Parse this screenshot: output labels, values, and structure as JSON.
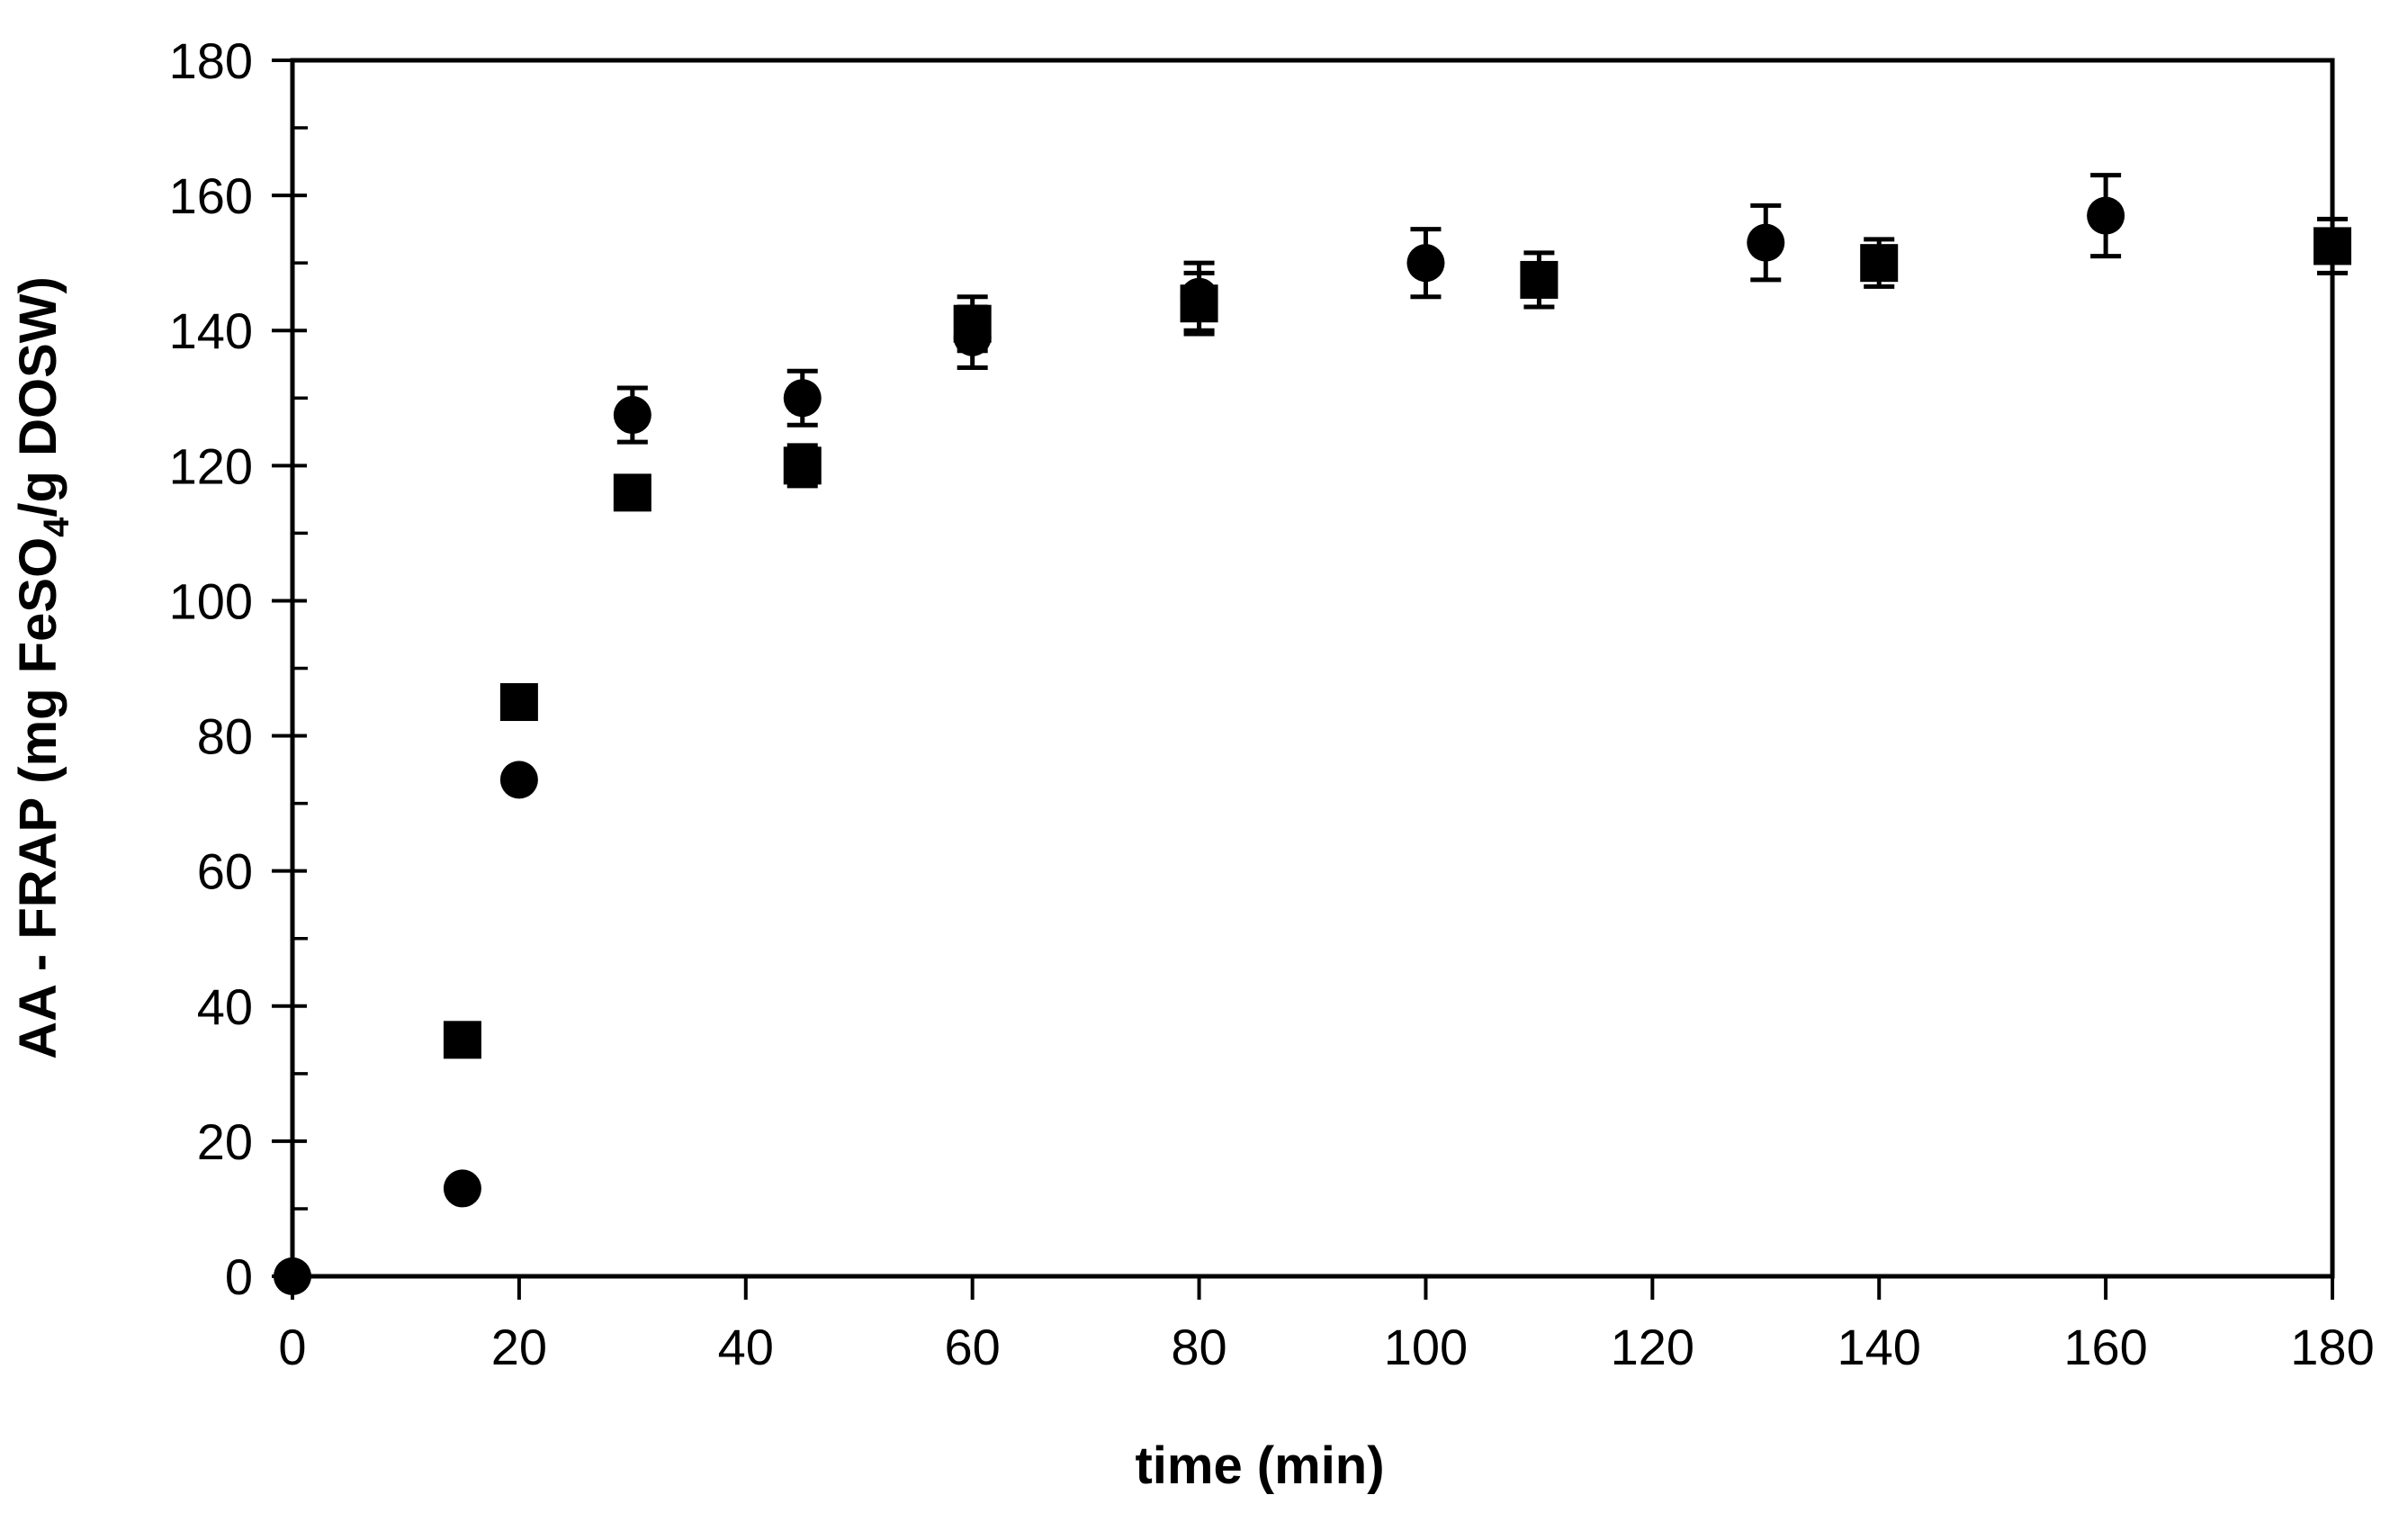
{
  "figure": {
    "background_color": "#ffffff",
    "foreground_color": "#000000"
  },
  "chart_data": {
    "type": "scatter",
    "title": "",
    "xlabel": "time (min)",
    "ylabel": "AA - FRAP (mg FeSO4/g DOSW)",
    "ylabel_parts": {
      "pre": "AA - FRAP (mg FeSO",
      "sub": "4",
      "post": "/g DOSW)"
    },
    "xlim": [
      0,
      180
    ],
    "ylim": [
      0,
      180
    ],
    "x_major_ticks": [
      0,
      20,
      40,
      60,
      80,
      100,
      120,
      140,
      160,
      180
    ],
    "y_major_ticks": [
      0,
      20,
      40,
      60,
      80,
      100,
      120,
      140,
      160,
      180
    ],
    "y_minor_ticks": [
      10,
      30,
      50,
      70,
      90,
      110,
      130,
      150,
      170
    ],
    "grid": false,
    "legend_position": "none",
    "frame": "full-box",
    "marker_color": "#000000",
    "error_bars": "vertical, capped",
    "series": [
      {
        "name": "square-series",
        "marker": "square",
        "points": [
          {
            "x": 15,
            "y": 35,
            "err": 0
          },
          {
            "x": 20,
            "y": 85,
            "err": 0
          },
          {
            "x": 30,
            "y": 116,
            "err": 0
          },
          {
            "x": 45,
            "y": 120,
            "err": 3
          },
          {
            "x": 60,
            "y": 141,
            "err": 4
          },
          {
            "x": 80,
            "y": 144,
            "err": 4.5
          },
          {
            "x": 110,
            "y": 147.5,
            "err": 4
          },
          {
            "x": 140,
            "y": 150,
            "err": 3.5
          },
          {
            "x": 180,
            "y": 152.5,
            "err": 4
          }
        ]
      },
      {
        "name": "circle-series",
        "marker": "circle",
        "points": [
          {
            "x": 0,
            "y": 0,
            "err": 0
          },
          {
            "x": 15,
            "y": 13,
            "err": 0
          },
          {
            "x": 20,
            "y": 73.5,
            "err": 0
          },
          {
            "x": 30,
            "y": 127.5,
            "err": 4
          },
          {
            "x": 45,
            "y": 130,
            "err": 4
          },
          {
            "x": 60,
            "y": 139,
            "err": 4.5
          },
          {
            "x": 80,
            "y": 145,
            "err": 5
          },
          {
            "x": 100,
            "y": 150,
            "err": 5
          },
          {
            "x": 130,
            "y": 153,
            "err": 5.5
          },
          {
            "x": 160,
            "y": 157,
            "err": 6
          }
        ]
      }
    ]
  }
}
